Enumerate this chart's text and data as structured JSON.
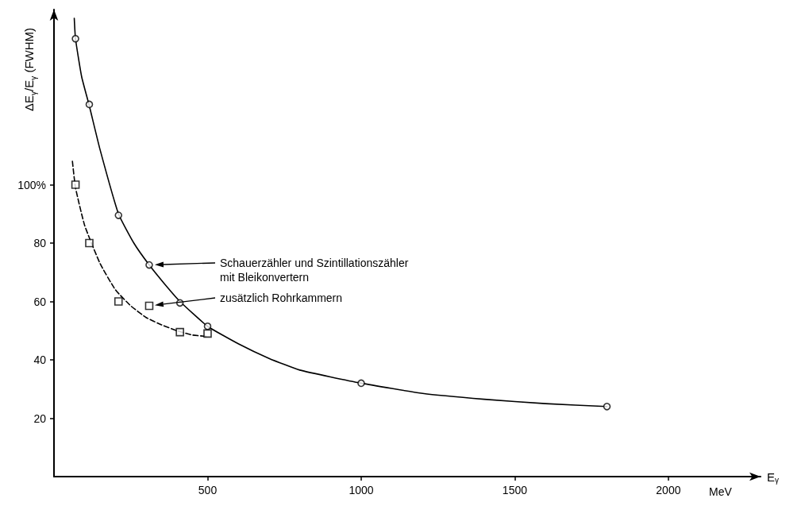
{
  "chart_data": {
    "type": "line",
    "xlabel": "E$_{γ}$",
    "ylabel": "ΔE$_{γ}$/E$_{γ}$ (FWHM)",
    "annotations": [
      "MeV"
    ],
    "xlim": [
      0,
      2300
    ],
    "xticks": [
      500,
      1000,
      1500,
      2000
    ],
    "ylim": [
      0,
      160
    ],
    "yticks": [
      20,
      40,
      60,
      80,
      {
        "value": 100,
        "label": "100%"
      }
    ],
    "grid": false,
    "legend": "bottom left",
    "series": [
      {
        "line_style": "solid",
        "marker": "none",
        "color": "#000000",
        "x": [
          66,
          70,
          90,
          115,
          150,
          210,
          260,
          310,
          360,
          410,
          500,
          600,
          700,
          800,
          1000,
          1200,
          1400,
          1600,
          1800
        ],
        "values": [
          157,
          150,
          137,
          127,
          112,
          90,
          80,
          72.5,
          66,
          60,
          51.5,
          45.5,
          40.5,
          36.5,
          32,
          28.5,
          26.5,
          25,
          24
        ]
      },
      {
        "line_style": "dashed",
        "marker": "none",
        "color": "#000000",
        "x": [
          60,
          70,
          100,
          150,
          200,
          250,
          300,
          350,
          400,
          450,
          500
        ],
        "values": [
          108,
          99,
          86,
          73,
          64,
          58.5,
          54.5,
          52,
          50,
          48.5,
          48
        ]
      },
      {
        "type": "scatter",
        "marker": "circle",
        "name": "Schauerzähler und Szintillationszähler mit Bleikonvertern",
        "color": "#000000",
        "x": [
          70,
          115,
          210,
          310,
          410,
          500,
          1000,
          1800
        ],
        "values": [
          150,
          127.5,
          89.5,
          72.5,
          59.5,
          51.5,
          32,
          24
        ]
      },
      {
        "type": "scatter",
        "marker": "square",
        "name": "zusätzlich Rohrkammern",
        "color": "#000000",
        "x": [
          70,
          115,
          210,
          310,
          410,
          500
        ],
        "values": [
          100,
          80,
          60,
          58.5,
          49.5,
          49
        ]
      }
    ]
  }
}
